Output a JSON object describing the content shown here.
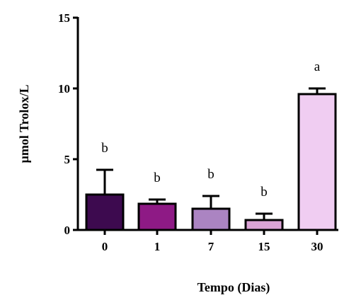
{
  "chart_data": {
    "type": "bar",
    "title": "",
    "xlabel": "Tempo (Dias)",
    "ylabel": "µmol Trolox/L",
    "ylim": [
      0,
      15
    ],
    "yticks": [
      "0",
      "5",
      "10",
      "15"
    ],
    "categories": [
      "0",
      "1",
      "7",
      "15",
      "30"
    ],
    "values": [
      2.5,
      1.85,
      1.5,
      0.7,
      9.6
    ],
    "errors": [
      1.75,
      0.3,
      0.9,
      0.45,
      0.4
    ],
    "significance": [
      "b",
      "b",
      "b",
      "b",
      "a"
    ],
    "colors": [
      "#3d0a4f",
      "#8e1a85",
      "#ab84c2",
      "#dba3d6",
      "#f0cdf2"
    ],
    "grid": false,
    "legend": "none"
  }
}
